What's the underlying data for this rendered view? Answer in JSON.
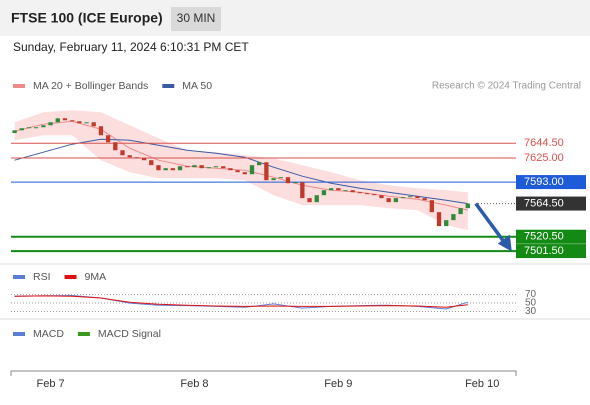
{
  "header": {
    "title": "FTSE 100 (ICE Europe)",
    "interval": "30 MIN",
    "datetime": "Sunday, February 11, 2024 6:10:31 PM CET"
  },
  "chart_data": [
    {
      "type": "candlestick",
      "credit": "Research © 2024 Trading Central",
      "xlim": [
        -0.5,
        69.7
      ],
      "xticks": [
        {
          "value": 5,
          "label": "Feb 7"
        },
        {
          "value": 25,
          "label": "Feb 8"
        },
        {
          "value": 45,
          "label": "Feb 9"
        },
        {
          "value": 65,
          "label": "Feb 10"
        }
      ],
      "ylim": [
        7487,
        7735
      ],
      "up_color": "#2e8b3a",
      "down_color": "#c0392b",
      "open": [
        7658.0,
        7661.7,
        7664.4,
        7665.7,
        7665.7,
        7668.3,
        7672.3,
        7677.6,
        7675.0,
        7673.6,
        7671.0,
        7672.3,
        7667.0,
        7655.1,
        7645.8,
        7635.2,
        7628.6,
        7625.9,
        7624.6,
        7622.0,
        7615.4,
        7608.7,
        7611.4,
        7608.7,
        7614.0,
        7612.7,
        7615.4,
        7611.4,
        7612.7,
        7614.0,
        7611.4,
        7608.7,
        7606.1,
        7603.4,
        7615.4,
        7619.3,
        7595.5,
        7598.1,
        7599.5,
        7591.5,
        7592.8,
        7571.7,
        7566.4,
        7575.6,
        7582.2,
        7584.9,
        7582.2,
        7582.2,
        7579.6,
        7578.3,
        7577.0,
        7575.6,
        7571.7,
        7566.4,
        7571.7,
        7573.0,
        7574.3,
        7571.7,
        7569.0,
        7553.1,
        7534.6,
        7542.5,
        7550.5,
        7558.4
      ],
      "close": [
        7661.7,
        7664.4,
        7665.7,
        7665.7,
        7668.3,
        7672.3,
        7677.6,
        7675.0,
        7673.6,
        7671.0,
        7672.3,
        7667.0,
        7655.1,
        7645.8,
        7635.2,
        7628.6,
        7625.9,
        7624.6,
        7622.0,
        7615.4,
        7608.7,
        7611.4,
        7608.7,
        7614.0,
        7612.7,
        7615.4,
        7611.4,
        7612.7,
        7614.0,
        7611.4,
        7608.7,
        7606.1,
        7603.4,
        7615.4,
        7619.3,
        7595.5,
        7598.1,
        7599.5,
        7591.5,
        7592.8,
        7571.7,
        7566.4,
        7575.6,
        7582.2,
        7584.9,
        7582.2,
        7582.2,
        7579.6,
        7578.3,
        7577.0,
        7575.6,
        7571.7,
        7566.4,
        7571.7,
        7573.0,
        7574.3,
        7571.7,
        7569.0,
        7553.1,
        7534.6,
        7542.5,
        7550.5,
        7558.4,
        7564.5
      ],
      "series": [
        {
          "name": "MA 20 + Bollinger Bands",
          "color": "#f08a8a",
          "band_color": "#fcdede",
          "x": [
            0,
            4,
            8,
            12,
            16,
            20,
            24,
            28,
            32,
            36,
            40,
            44,
            48,
            52,
            56,
            60,
            63
          ],
          "values": [
            7660.4,
            7669.7,
            7673.6,
            7663.0,
            7637.9,
            7622.0,
            7614.0,
            7611.4,
            7608.7,
            7599.5,
            7588.9,
            7582.2,
            7579.6,
            7574.3,
            7570.3,
            7562.4,
            7555.8
          ],
          "upper": [
            7672.3,
            7685.6,
            7688.2,
            7685.6,
            7668.3,
            7651.1,
            7635.2,
            7632.6,
            7628.6,
            7624.6,
            7615.4,
            7606.1,
            7595.5,
            7588.9,
            7584.9,
            7582.2,
            7579.6
          ],
          "lower": [
            7648.5,
            7655.1,
            7655.1,
            7622.0,
            7606.1,
            7598.1,
            7598.1,
            7598.1,
            7595.5,
            7575.6,
            7562.4,
            7562.4,
            7562.4,
            7558.4,
            7555.8,
            7535.9,
            7529.3
          ]
        },
        {
          "name": "MA 50",
          "color": "#3b5ba5",
          "x": [
            0,
            4,
            8,
            12,
            16,
            20,
            24,
            28,
            32,
            36,
            40,
            44,
            48,
            52,
            56,
            60,
            63
          ],
          "values": [
            7622.0,
            7632.6,
            7643.2,
            7649.8,
            7648.5,
            7641.9,
            7635.2,
            7631.3,
            7626.0,
            7612.7,
            7600.8,
            7591.5,
            7584.9,
            7579.6,
            7574.3,
            7569.0,
            7564.5
          ]
        }
      ],
      "levels": [
        {
          "value": 7644.5,
          "label": "7644.50",
          "color": "#d9534f",
          "style": "text"
        },
        {
          "value": 7625.0,
          "label": "7625.00",
          "color": "#d9534f",
          "style": "text"
        },
        {
          "value": 7593.0,
          "label": "7593.00",
          "color": "#1e5bd8",
          "style": "box"
        },
        {
          "value": 7564.5,
          "label": "7564.50",
          "color": "#333333",
          "style": "current"
        },
        {
          "value": 7520.5,
          "label": "7520.50",
          "color": "#138a13",
          "style": "box"
        },
        {
          "value": 7501.5,
          "label": "7501.50",
          "color": "#138a13",
          "style": "box"
        }
      ]
    },
    {
      "type": "line",
      "ylim": [
        17,
        88
      ],
      "yticks": [
        70,
        50,
        30
      ],
      "series": [
        {
          "name": "RSI",
          "color": "#5b7fd6",
          "x": [
            0,
            4,
            8,
            12,
            16,
            20,
            24,
            28,
            32,
            36,
            40,
            44,
            48,
            52,
            56,
            60,
            63
          ],
          "values": [
            66,
            67,
            68,
            62,
            50,
            45,
            44,
            42,
            40,
            48,
            38,
            42,
            44,
            45,
            42,
            36,
            52
          ]
        },
        {
          "name": "9MA",
          "color": "#dd1111",
          "x": [
            0,
            4,
            8,
            12,
            16,
            20,
            24,
            28,
            32,
            36,
            40,
            44,
            48,
            52,
            56,
            60,
            63
          ],
          "values": [
            66,
            67,
            66,
            62,
            52,
            47,
            45,
            43,
            42,
            43,
            42,
            42,
            43,
            44,
            43,
            40,
            46
          ]
        }
      ]
    },
    {
      "type": "line",
      "series": [
        {
          "name": "MACD",
          "color": "#5b7fd6"
        },
        {
          "name": "MACD Signal",
          "color": "#3a9a1a"
        }
      ]
    }
  ]
}
